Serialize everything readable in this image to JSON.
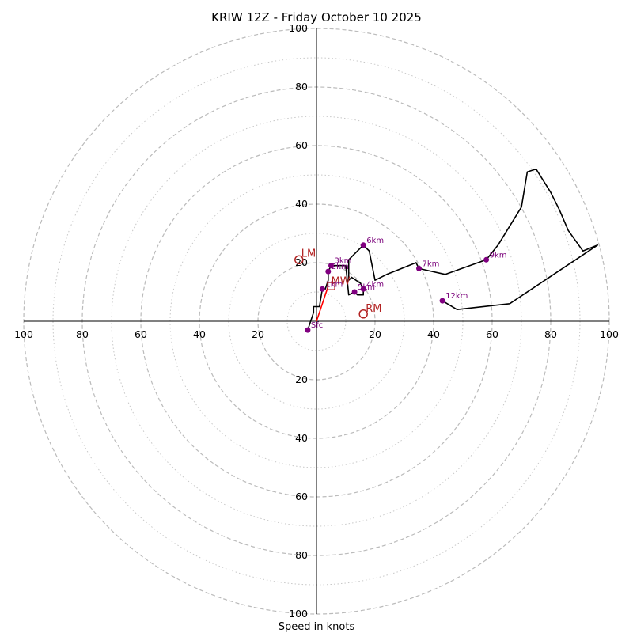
{
  "chart_data": {
    "type": "hodograph",
    "title": "KRIW 12Z - Friday October 10 2025",
    "xlabel": "Speed in knots",
    "rings": [
      20,
      40,
      60,
      80,
      100
    ],
    "minor_rings": [
      10,
      30,
      50,
      70,
      90
    ],
    "max_speed": 100,
    "axis_ticks": {
      "left": [
        "100",
        "80",
        "60",
        "40",
        "20"
      ],
      "right": [
        "20",
        "40",
        "60",
        "80",
        "100"
      ],
      "up": [
        "100",
        "80",
        "60",
        "40",
        "20"
      ],
      "down": [
        "20",
        "40",
        "60",
        "80",
        "100"
      ]
    },
    "trace": [
      [
        -3,
        -3
      ],
      [
        -1,
        3
      ],
      [
        -1,
        5
      ],
      [
        1,
        5
      ],
      [
        2,
        11
      ],
      [
        3,
        11
      ],
      [
        4,
        14
      ],
      [
        4,
        17
      ],
      [
        5,
        19
      ],
      [
        10,
        19
      ],
      [
        11,
        9
      ],
      [
        13,
        10
      ],
      [
        14,
        9
      ],
      [
        16,
        9
      ],
      [
        16,
        11
      ],
      [
        15,
        13
      ],
      [
        12,
        15
      ],
      [
        11,
        14
      ],
      [
        11,
        21
      ],
      [
        16,
        26
      ],
      [
        18,
        24
      ],
      [
        20,
        14
      ],
      [
        24,
        16
      ],
      [
        34,
        20
      ],
      [
        35,
        18
      ],
      [
        44,
        16
      ],
      [
        58,
        21
      ],
      [
        62,
        26
      ],
      [
        70,
        39
      ],
      [
        72,
        51
      ],
      [
        75,
        52
      ],
      [
        80,
        44
      ],
      [
        83,
        38
      ],
      [
        86,
        31
      ],
      [
        91,
        24
      ],
      [
        96,
        26
      ],
      [
        66,
        6
      ],
      [
        48,
        4
      ],
      [
        43,
        7
      ]
    ],
    "height_markers": [
      {
        "label": "Sfc",
        "u": -3,
        "v": -3
      },
      {
        "label": "1km",
        "u": 2,
        "v": 11
      },
      {
        "label": "2km",
        "u": 4,
        "v": 17
      },
      {
        "label": "3km",
        "u": 5,
        "v": 19
      },
      {
        "label": "4km",
        "u": 16,
        "v": 11
      },
      {
        "label": "5km",
        "u": 13,
        "v": 10
      },
      {
        "label": "6km",
        "u": 16,
        "v": 26
      },
      {
        "label": "7km",
        "u": 35,
        "v": 18
      },
      {
        "label": "9km",
        "u": 58,
        "v": 21
      },
      {
        "label": "12km",
        "u": 43,
        "v": 7
      }
    ],
    "storm_motion": {
      "bunkers_left": {
        "label": "LM",
        "u": -6,
        "v": 21
      },
      "bunkers_right": {
        "label": "RM",
        "u": 16,
        "v": 2.5
      },
      "mean_wind": {
        "label": "MW",
        "u": 5,
        "v": 12
      }
    },
    "shear_vector": {
      "from": [
        0,
        0
      ],
      "to": [
        4,
        12
      ]
    },
    "colors": {
      "trace": "#000000",
      "marker": "#800080",
      "marker_label": "#7a007a",
      "storm_motion": "#b22222",
      "shear_vector": "#ff0000",
      "ring": "#bbbbbb",
      "axis": "#000000"
    }
  }
}
